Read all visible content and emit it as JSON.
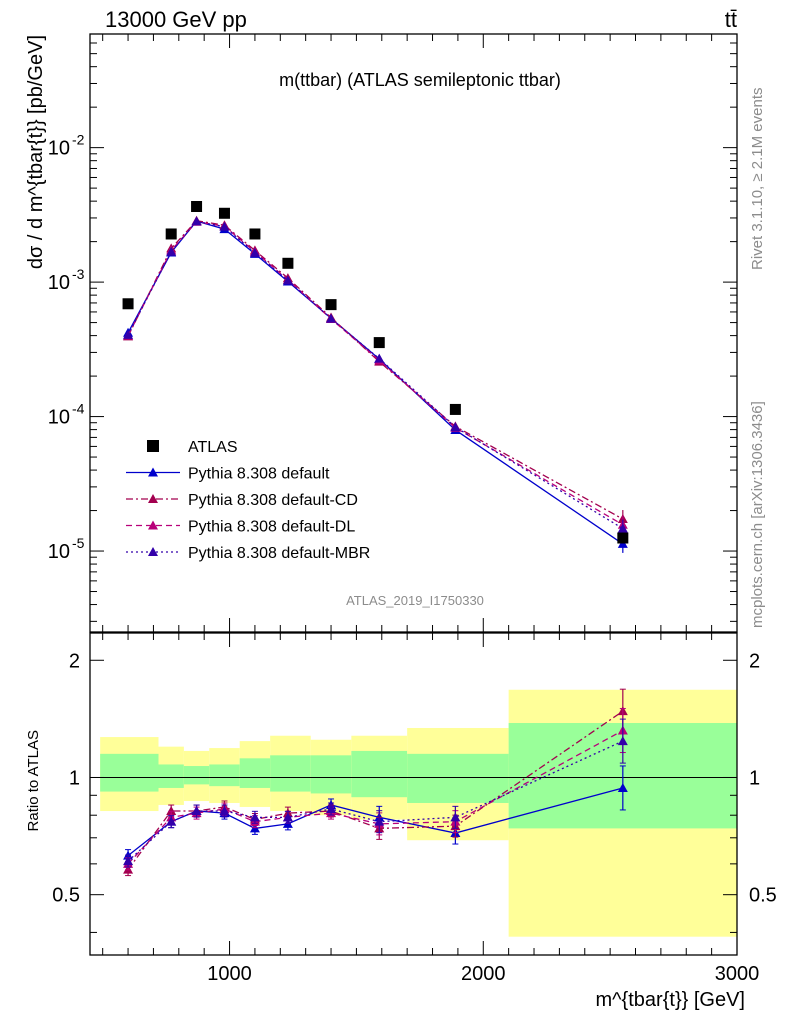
{
  "header": {
    "left": "13000 GeV pp",
    "right": "tt̄",
    "plot_title": "m(ttbar) (ATLAS semileptonic ttbar)",
    "analysis_id": "ATLAS_2019_I1750330",
    "side_rivet": "Rivet 3.1.10, ≥ 2.1M events",
    "side_mcplots": "mcplots.cern.ch [arXiv:1306.3436]"
  },
  "axes": {
    "main_ylabel": "dσ / d m^{tbar{t}} [pb/GeV]",
    "ratio_ylabel": "Ratio to ATLAS",
    "xlabel": "m^{tbar{t}} [GeV]",
    "x_ticks": [
      "1000",
      "2000",
      "3000"
    ],
    "main_y_ticks": [
      "10^-2",
      "10^-3",
      "10^-4",
      "10^-5"
    ],
    "ratio_y_ticks": [
      "0.5",
      "1",
      "2"
    ]
  },
  "legend": [
    {
      "label": "ATLAS",
      "color": "#000000",
      "style": "square"
    },
    {
      "label": "Pythia 8.308 default",
      "color": "#0000cc",
      "style": "solid"
    },
    {
      "label": "Pythia 8.308 default-CD",
      "color": "#a3004f",
      "style": "dashdot"
    },
    {
      "label": "Pythia 8.308 default-DL",
      "color": "#b8007a",
      "style": "dashed"
    },
    {
      "label": "Pythia 8.308 default-MBR",
      "color": "#3300aa",
      "style": "dotted"
    }
  ],
  "chart_data": {
    "type": "line",
    "title": "m(ttbar) (ATLAS semileptonic ttbar)",
    "xlabel": "m^{tbar{t}} [GeV]",
    "ylabel": "dσ / d m^{tbar{t}} [pb/GeV]",
    "xlim": [
      450,
      3000
    ],
    "ylim": [
      2.5e-06,
      0.07
    ],
    "yscale": "log",
    "ratio_ylim": [
      0.35,
      2.35
    ],
    "ratio_yscale": "log",
    "bin_edges": [
      490,
      720,
      820,
      920,
      1040,
      1160,
      1320,
      1480,
      1700,
      2100,
      3000
    ],
    "x": [
      600,
      770,
      870,
      980,
      1100,
      1230,
      1400,
      1590,
      1890,
      2550
    ],
    "data": {
      "name": "ATLAS",
      "values": [
        0.00069,
        0.00228,
        0.00365,
        0.00325,
        0.00228,
        0.00138,
        0.00068,
        0.000355,
        0.000113,
        1.25e-05
      ],
      "ratio_band_stat_low": [
        0.92,
        0.94,
        0.96,
        0.95,
        0.94,
        0.92,
        0.91,
        0.89,
        0.86,
        0.74
      ],
      "ratio_band_stat_high": [
        1.15,
        1.08,
        1.07,
        1.08,
        1.12,
        1.14,
        1.14,
        1.17,
        1.15,
        1.38
      ],
      "ratio_band_total_low": [
        0.82,
        0.85,
        0.87,
        0.86,
        0.84,
        0.82,
        0.8,
        0.78,
        0.69,
        0.39
      ],
      "ratio_band_total_high": [
        1.27,
        1.2,
        1.17,
        1.19,
        1.24,
        1.28,
        1.25,
        1.28,
        1.34,
        1.68
      ]
    },
    "series": [
      {
        "name": "Pythia 8.308 default",
        "color": "#0000cc",
        "dash": "",
        "values": [
          0.00042,
          0.00166,
          0.00284,
          0.00248,
          0.00162,
          0.00101,
          0.000538,
          0.000268,
          7.95e-05,
          1.13e-05
        ],
        "ratio": [
          0.63,
          0.77,
          0.82,
          0.81,
          0.74,
          0.76,
          0.85,
          0.79,
          0.72,
          0.94
        ]
      },
      {
        "name": "Pythia 8.308 default-CD",
        "color": "#a3004f",
        "dash": "7,3,2,3",
        "values": [
          0.000395,
          0.00178,
          0.00286,
          0.00265,
          0.00172,
          0.00107,
          0.000545,
          0.000256,
          8.45e-05,
          1.73e-05
        ],
        "ratio": [
          0.58,
          0.82,
          0.82,
          0.84,
          0.78,
          0.81,
          0.82,
          0.74,
          0.75,
          1.48
        ]
      },
      {
        "name": "Pythia 8.308 default-DL",
        "color": "#b8007a",
        "dash": "6,4",
        "values": [
          0.0004,
          0.00172,
          0.00281,
          0.0026,
          0.00168,
          0.00104,
          0.000532,
          0.000262,
          8.25e-05,
          1.57e-05
        ],
        "ratio": [
          0.6,
          0.79,
          0.81,
          0.83,
          0.77,
          0.79,
          0.81,
          0.76,
          0.77,
          1.32
        ]
      },
      {
        "name": "Pythia 8.308 default-MBR",
        "color": "#3300aa",
        "dash": "2,3",
        "values": [
          0.000405,
          0.00168,
          0.00283,
          0.00258,
          0.00165,
          0.00103,
          0.000535,
          0.00027,
          8.35e-05,
          1.47e-05
        ],
        "ratio": [
          0.61,
          0.77,
          0.82,
          0.82,
          0.79,
          0.79,
          0.83,
          0.77,
          0.79,
          1.24
        ]
      }
    ]
  }
}
